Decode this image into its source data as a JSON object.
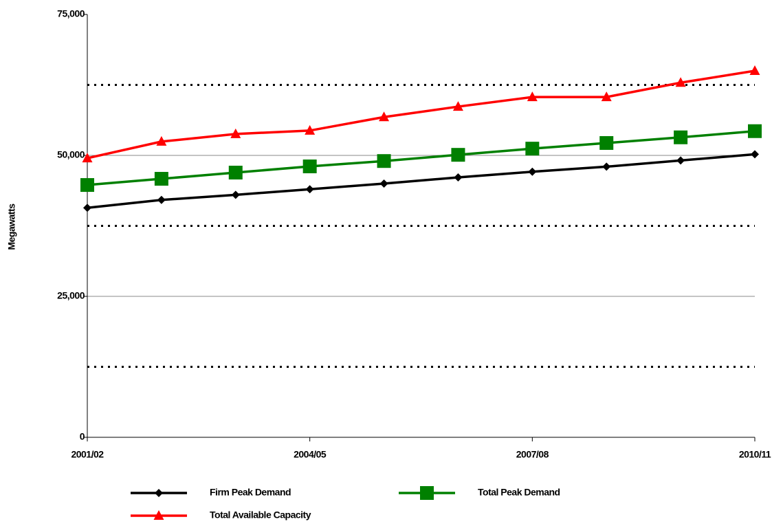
{
  "chart_data": {
    "type": "line",
    "y_label": "Megawatts",
    "categories": [
      "2001/02",
      null,
      null,
      "2004/05",
      null,
      null,
      "2007/08",
      null,
      null,
      "2010/11"
    ],
    "series": [
      {
        "name": "Firm Peak Demand",
        "color": "#000000",
        "marker": "diamond",
        "values": [
          40700,
          42100,
          43000,
          44000,
          45000,
          46100,
          47100,
          48000,
          49100,
          50200
        ]
      },
      {
        "name": "Total Peak Demand",
        "color": "#008000",
        "marker": "square",
        "values": [
          44750,
          45850,
          46950,
          48050,
          49000,
          50100,
          51200,
          52200,
          53200,
          54300
        ]
      },
      {
        "name": "Total Available Capacity",
        "color": "#ff0000",
        "marker": "triangle",
        "values": [
          49500,
          52450,
          53800,
          54400,
          56800,
          58650,
          60350,
          60350,
          62900,
          65000
        ]
      }
    ],
    "ylim": [
      0,
      75000
    ],
    "yticks": [
      0,
      {
        "value": 25000,
        "label": "25,000"
      },
      {
        "value": 50000,
        "label": "50,000"
      },
      {
        "value": 75000,
        "label": "75,000"
      }
    ],
    "grid": true,
    "minor_grid": [
      12500,
      37500,
      62500
    ],
    "legend": "bottom"
  }
}
